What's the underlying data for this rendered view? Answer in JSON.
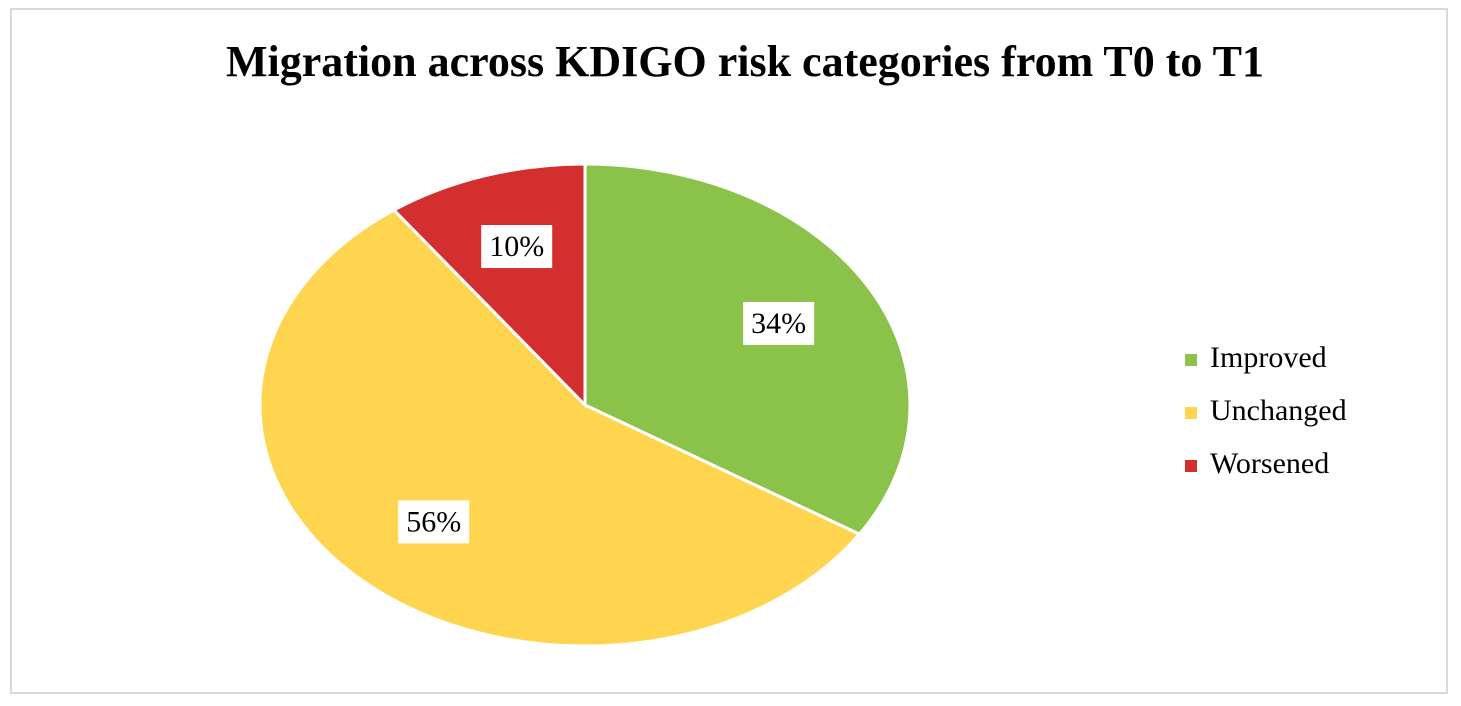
{
  "chart_data": {
    "type": "pie",
    "title": "Migration across KDIGO risk categories from T0 to T1",
    "categories": [
      "Improved",
      "Unchanged",
      "Worsened"
    ],
    "values": [
      34,
      56,
      10
    ],
    "value_labels": [
      "34%",
      "56%",
      "10%"
    ],
    "colors": [
      "#8bc34a",
      "#ffd54f",
      "#d32f2f"
    ],
    "legend": "right"
  }
}
